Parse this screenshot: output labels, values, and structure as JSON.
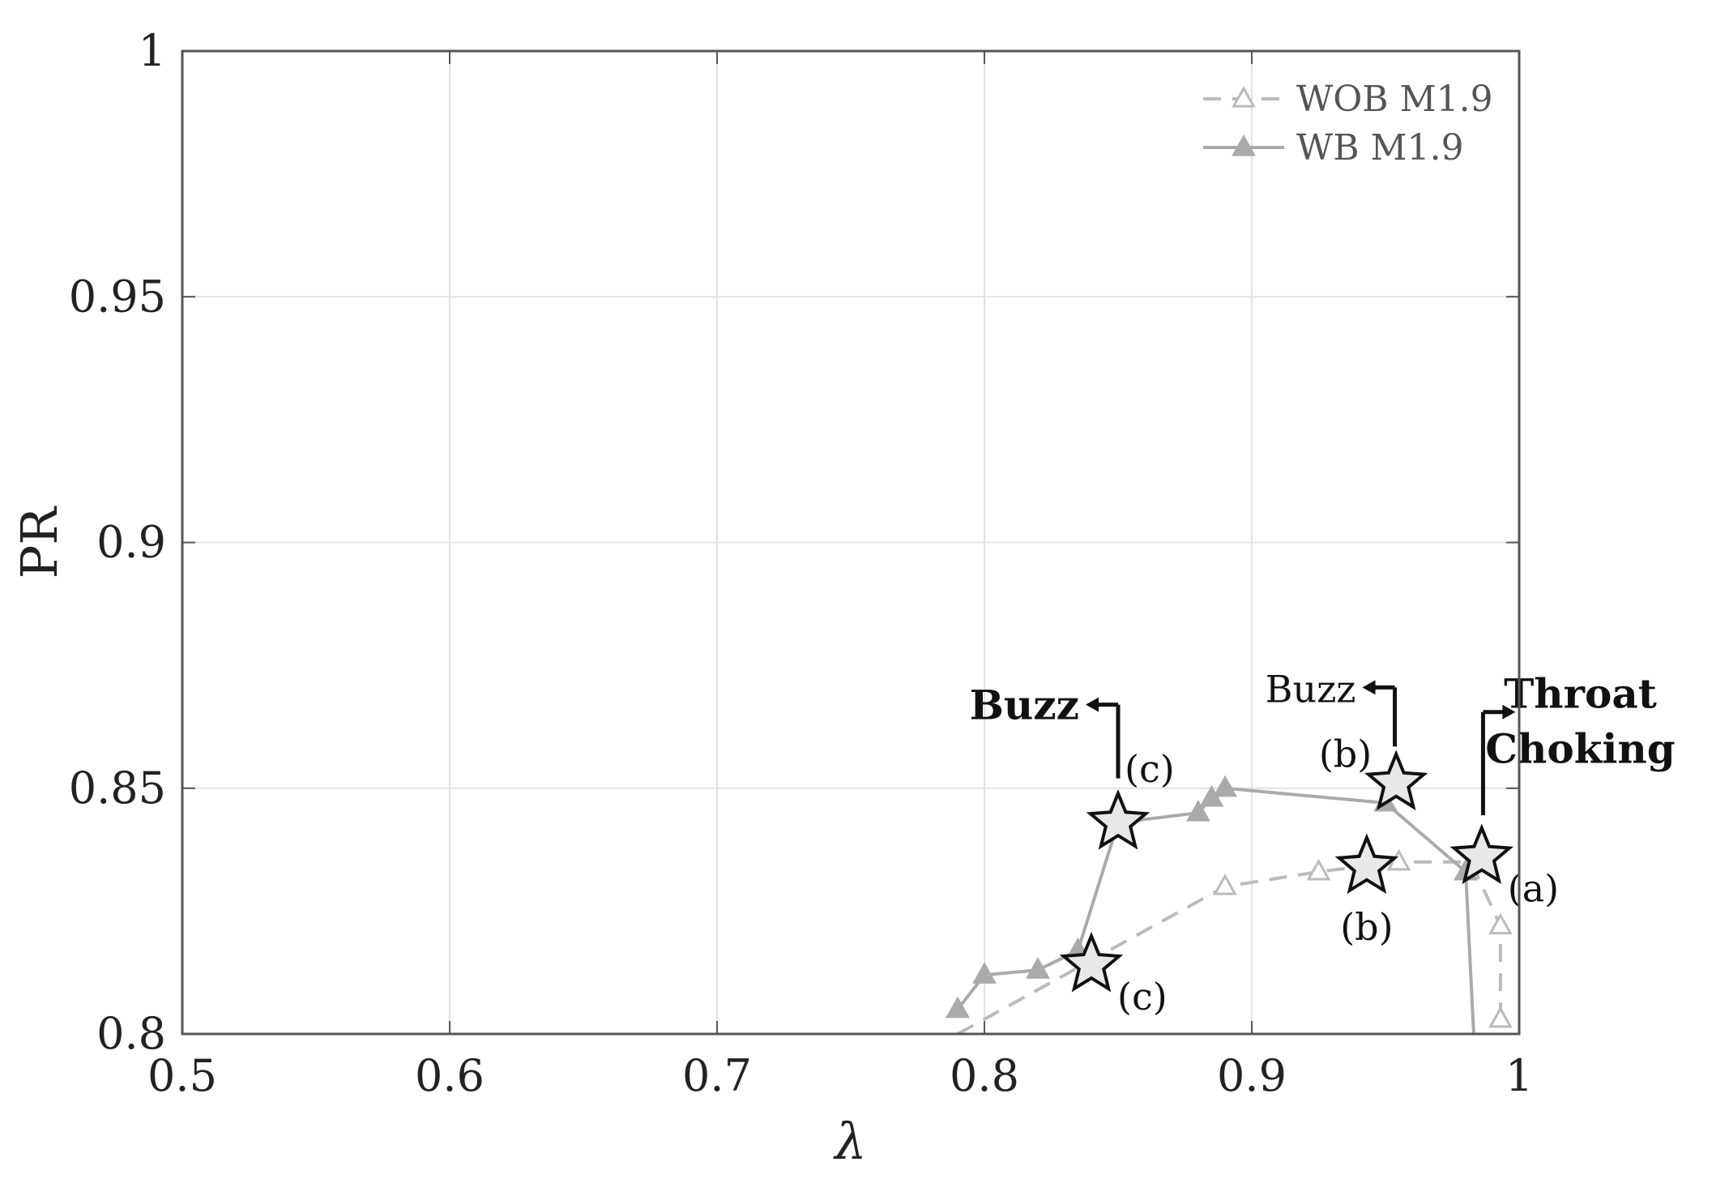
{
  "chart_data": {
    "type": "line",
    "title": "",
    "xlabel": "λ",
    "ylabel": "PR",
    "xlim": [
      0.5,
      1.0
    ],
    "ylim": [
      0.8,
      1.0
    ],
    "x_ticks": [
      "0.5",
      "0.6",
      "0.7",
      "0.8",
      "0.9",
      "1"
    ],
    "y_ticks": [
      "0.8",
      "0.85",
      "0.9",
      "0.95",
      "1"
    ],
    "grid": true,
    "legend_position": "top-right",
    "series": [
      {
        "name": "WOB M1.9",
        "style": "dashed",
        "marker": "open-triangle",
        "color": "#bbbbbb",
        "points": [
          {
            "x": 0.79,
            "y": 0.8
          },
          {
            "x": 0.84,
            "y": 0.815
          },
          {
            "x": 0.89,
            "y": 0.83
          },
          {
            "x": 0.925,
            "y": 0.833
          },
          {
            "x": 0.955,
            "y": 0.835
          },
          {
            "x": 0.982,
            "y": 0.835
          },
          {
            "x": 0.993,
            "y": 0.822
          },
          {
            "x": 0.993,
            "y": 0.803
          }
        ]
      },
      {
        "name": "WB M1.9",
        "style": "solid",
        "marker": "filled-triangle",
        "color": "#aaaaaa",
        "points": [
          {
            "x": 0.79,
            "y": 0.805
          },
          {
            "x": 0.8,
            "y": 0.812
          },
          {
            "x": 0.82,
            "y": 0.813
          },
          {
            "x": 0.835,
            "y": 0.817
          },
          {
            "x": 0.85,
            "y": 0.843
          },
          {
            "x": 0.88,
            "y": 0.845
          },
          {
            "x": 0.885,
            "y": 0.848
          },
          {
            "x": 0.89,
            "y": 0.85
          },
          {
            "x": 0.95,
            "y": 0.847
          },
          {
            "x": 0.98,
            "y": 0.833
          },
          {
            "x": 0.983,
            "y": 0.8
          }
        ]
      }
    ],
    "stars": [
      {
        "x": 0.85,
        "y": 0.843,
        "label": "(c)",
        "label_side": "upper-right"
      },
      {
        "x": 0.84,
        "y": 0.814,
        "label": "(c)",
        "label_side": "lower-right"
      },
      {
        "x": 0.954,
        "y": 0.851,
        "label": "(b)",
        "label_side": "upper-left"
      },
      {
        "x": 0.943,
        "y": 0.834,
        "label": "(b)",
        "label_side": "below"
      },
      {
        "x": 0.986,
        "y": 0.836,
        "label": "(a)",
        "label_side": "lower-right"
      }
    ],
    "annotations": [
      {
        "text": "Buzz",
        "bold": true,
        "x": 0.85,
        "y_top": 0.867,
        "y_bottom": 0.852,
        "direction": "left"
      },
      {
        "text": "Buzz",
        "bold": false,
        "x": 0.9535,
        "y_top": 0.8705,
        "y_bottom": 0.8585,
        "direction": "left"
      },
      {
        "text_lines": [
          "Throat",
          "Choking"
        ],
        "bold": true,
        "x": 0.9865,
        "y_top": 0.8655,
        "y_bottom": 0.8445,
        "direction": "right"
      }
    ]
  }
}
